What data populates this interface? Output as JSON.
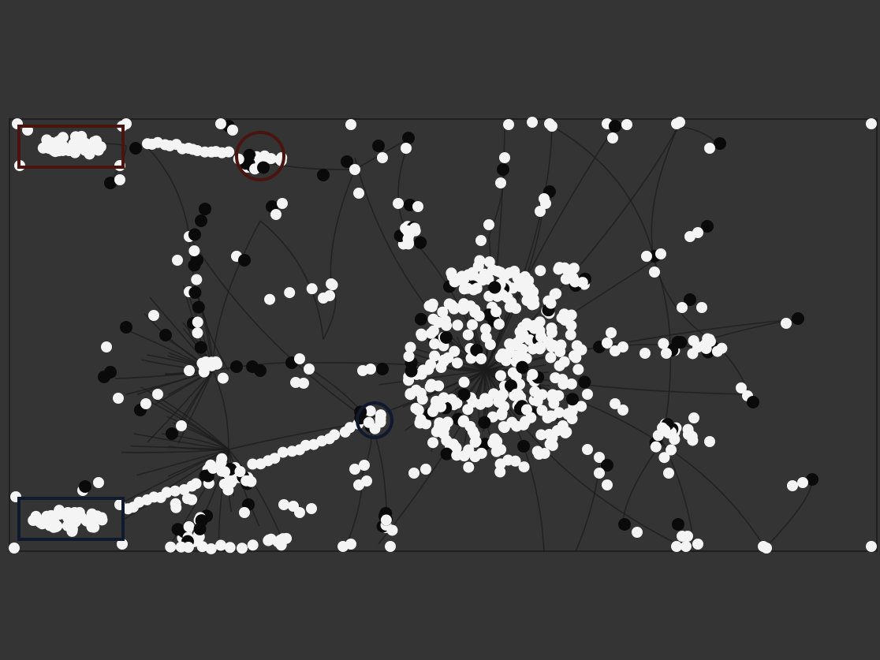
{
  "theme": {
    "background": "#343434",
    "frame_stroke": "#1f1f1f",
    "edge_color": "#1c1c1c",
    "node_white": "#f4f4f4",
    "node_black": "#0a0a0a",
    "highlight_red": "#4a1410",
    "highlight_blue": "#0f1a2e"
  },
  "graph": {
    "node_types": [
      "white",
      "black"
    ],
    "highlights": [
      {
        "id": "top-left-cluster",
        "shape": "rectangle",
        "color": "red"
      },
      {
        "id": "top-cluster",
        "shape": "circle",
        "color": "red"
      },
      {
        "id": "bottom-left-cluster",
        "shape": "rectangle",
        "color": "blue"
      },
      {
        "id": "center-node",
        "shape": "circle",
        "color": "blue"
      }
    ]
  }
}
